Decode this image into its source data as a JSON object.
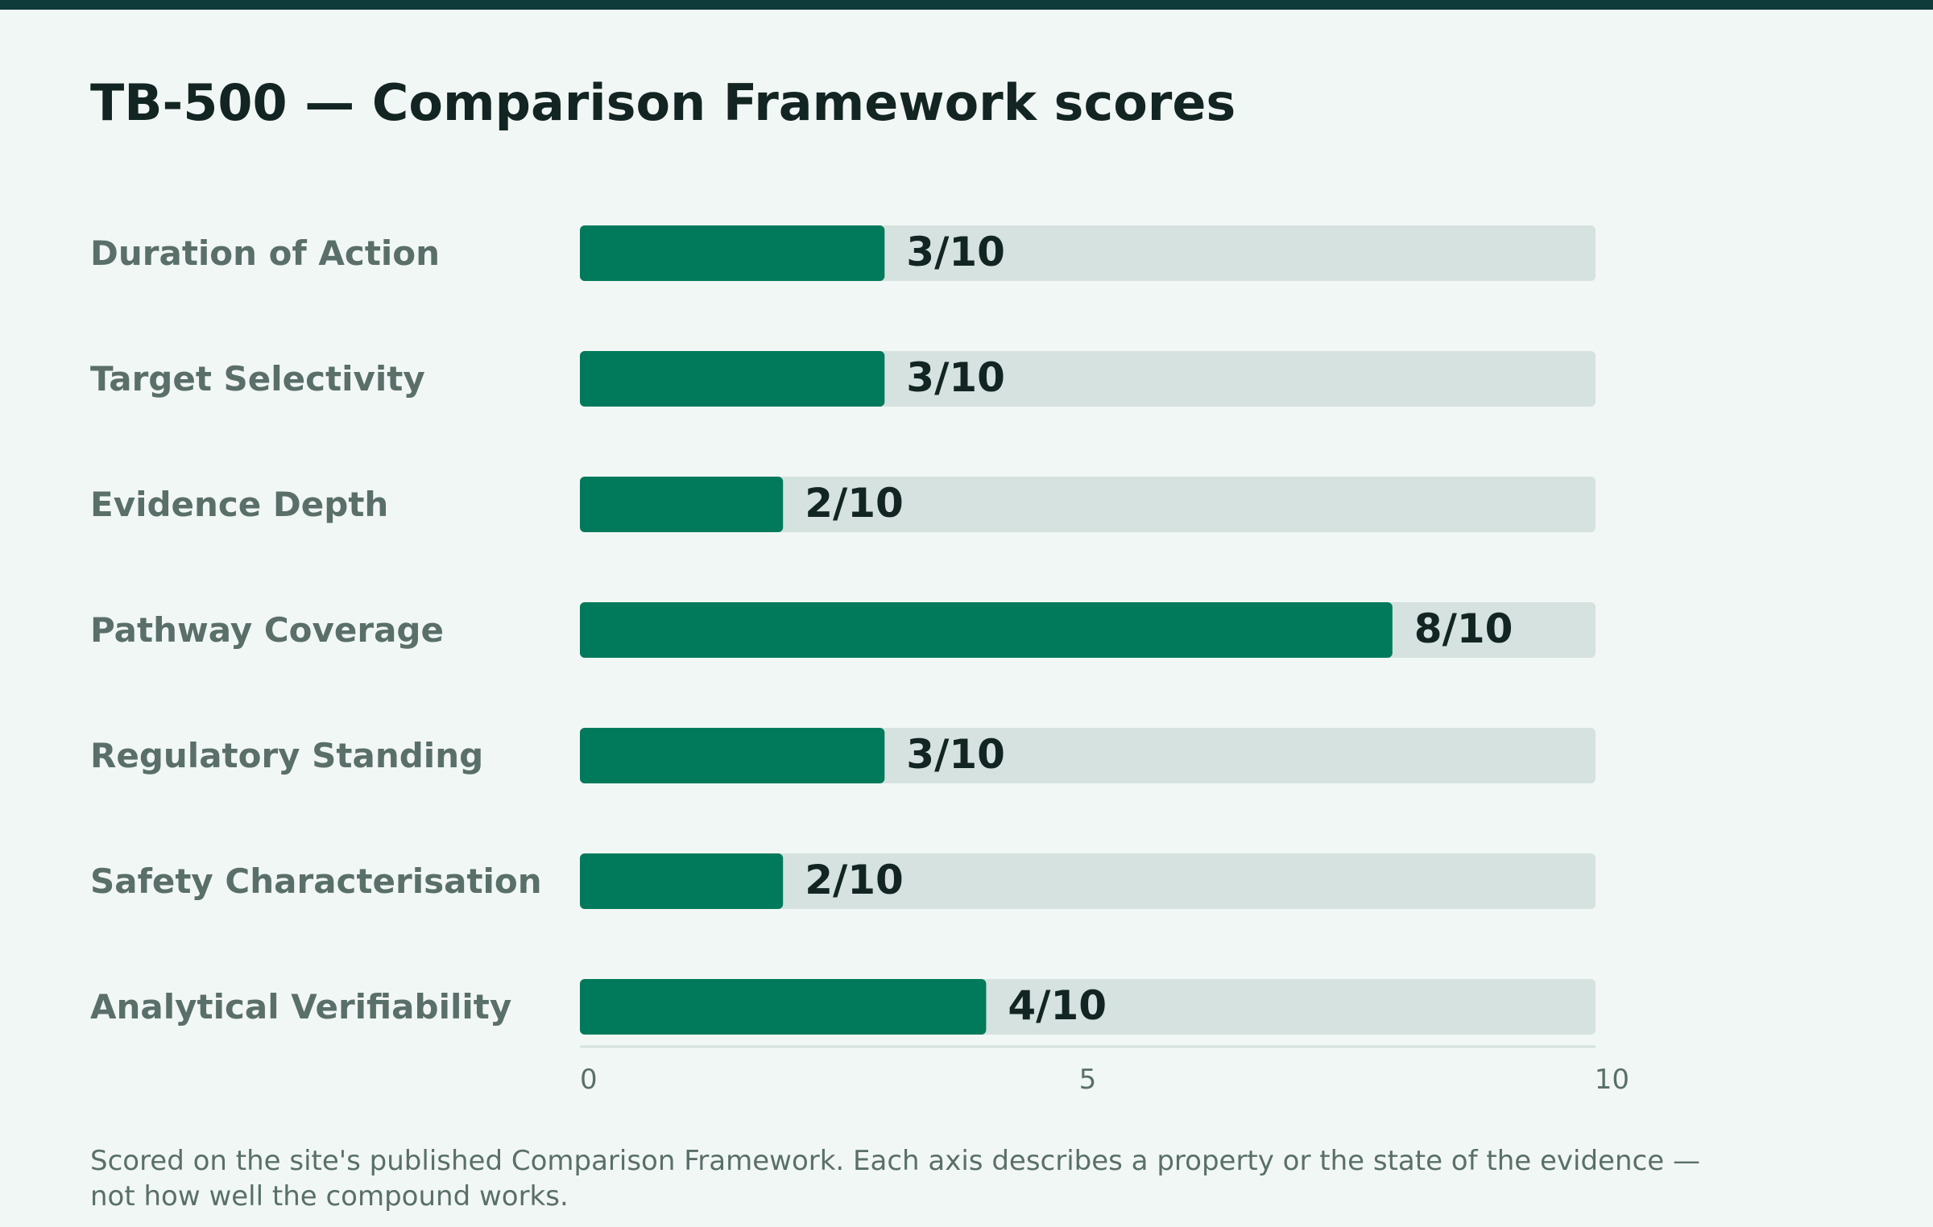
{
  "chart_data": {
    "type": "bar",
    "orientation": "horizontal",
    "title": "TB-500 — Comparison Framework scores",
    "categories": [
      "Duration of Action",
      "Target Selectivity",
      "Evidence Depth",
      "Pathway Coverage",
      "Regulatory Standing",
      "Safety Characterisation",
      "Analytical Verifiability"
    ],
    "values": [
      3,
      3,
      2,
      8,
      3,
      2,
      4
    ],
    "value_labels": [
      "3/10",
      "3/10",
      "2/10",
      "8/10",
      "3/10",
      "2/10",
      "4/10"
    ],
    "xlim": [
      0,
      10
    ],
    "x_ticks": [
      0,
      5,
      10
    ],
    "xlabel": "",
    "ylabel": "",
    "grid": false,
    "legend": "none",
    "colors": {
      "bar": "#007a5a",
      "track": "#d5e2df",
      "axis": "#d5e2df",
      "top_bar": "#0f3b3a"
    }
  },
  "footnote": "Scored on the site's published Comparison Framework. Each axis describes a property or the state of the evidence — not how well the compound works."
}
